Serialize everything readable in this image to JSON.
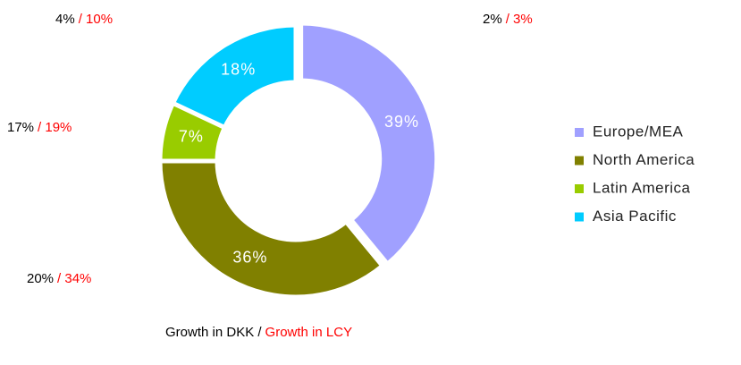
{
  "chart_data": {
    "type": "donut",
    "categories": [
      "Europe/MEA",
      "North America",
      "Latin America",
      "Asia Pacific"
    ],
    "values": [
      39,
      36,
      7,
      18
    ],
    "value_labels": [
      "39%",
      "36%",
      "7%",
      "18%"
    ],
    "colors": [
      "#a0a0ff",
      "#808000",
      "#99cc00",
      "#00ccff"
    ],
    "growth_dkk": [
      "2%",
      "20%",
      "17%",
      "4%"
    ],
    "growth_lcy": [
      "/ 3%",
      "/ 34%",
      "/ 19%",
      "/ 10%"
    ],
    "footer_dkk": "Growth in DKK /",
    "footer_lcy": "Growth in LCY",
    "legend": "right"
  }
}
